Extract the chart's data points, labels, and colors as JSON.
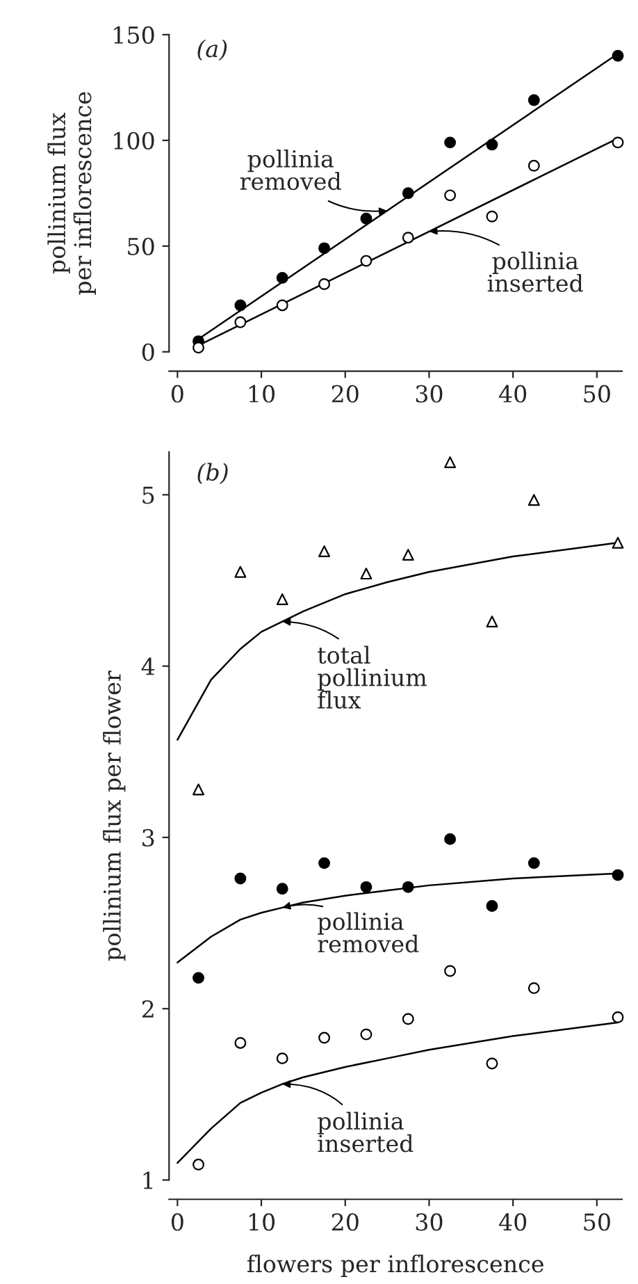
{
  "chart_data": [
    {
      "type": "scatter",
      "ylabel": "pollinium flux\nper inflorescence",
      "xlim": [
        -1,
        53
      ],
      "xticks": [
        0,
        10,
        20,
        30,
        40,
        50
      ],
      "ylim": [
        0,
        150
      ],
      "yticks": [
        0,
        50,
        100,
        150
      ],
      "grid": false,
      "legend": false,
      "annotations": [
        "(a)",
        {
          "text": "pollinia\nremoved",
          "x": 25,
          "y": 66.75
        },
        {
          "text": "pollinia\ninserted",
          "x": 30,
          "y": 56.9
        }
      ],
      "series": [
        {
          "type": "scatter",
          "marker": "circle",
          "color": "#000000",
          "x": [
            2.5,
            7.5,
            12.5,
            17.5,
            22.5,
            27.5,
            32.5,
            37.5,
            42.5,
            52.5
          ],
          "values": [
            5,
            22,
            35,
            49,
            63,
            75,
            99,
            98,
            119,
            140
          ]
        },
        {
          "type": "scatter",
          "marker": "circle",
          "color": "#ffffff",
          "x": [
            2.5,
            7.5,
            12.5,
            17.5,
            22.5,
            27.5,
            32.5,
            37.5,
            42.5,
            52.5
          ],
          "values": [
            2,
            14,
            22,
            32,
            43,
            54,
            74,
            64,
            88,
            99
          ]
        },
        {
          "type": "line",
          "color": "#000000",
          "line_style": "solid",
          "x": [
            2.5,
            52.5
          ],
          "values": [
            6,
            141
          ]
        },
        {
          "type": "line",
          "color": "#000000",
          "line_style": "solid",
          "x": [
            2.5,
            52.5
          ],
          "values": [
            3,
            101
          ]
        }
      ]
    },
    {
      "type": "scatter",
      "xlabel": "flowers per inflorescence",
      "ylabel": "pollinium flux per flower",
      "xlim": [
        -1,
        53
      ],
      "xticks": [
        0,
        10,
        20,
        30,
        40,
        50
      ],
      "ylim": [
        1,
        5.25
      ],
      "yticks": [
        1,
        2,
        3,
        4,
        5
      ],
      "grid": false,
      "legend": false,
      "annotations": [
        "(b)",
        {
          "text": "total\npollinium\nflux",
          "x": 12.5,
          "y": 4.26
        },
        {
          "text": "pollinia\nremoved",
          "x": 12.5,
          "y": 2.59
        },
        {
          "text": "pollinia\ninserted",
          "x": 12.5,
          "y": 1.56
        }
      ],
      "series": [
        {
          "type": "scatter",
          "marker": "triangle",
          "color": "#ffffff",
          "x": [
            2.5,
            7.5,
            12.5,
            17.5,
            22.5,
            27.5,
            32.5,
            37.5,
            42.5,
            52.5
          ],
          "values": [
            3.28,
            4.55,
            4.39,
            4.67,
            4.54,
            4.65,
            5.19,
            4.26,
            4.97,
            4.72
          ]
        },
        {
          "type": "scatter",
          "marker": "circle",
          "color": "#000000",
          "x": [
            2.5,
            7.5,
            12.5,
            17.5,
            22.5,
            27.5,
            32.5,
            37.5,
            42.5,
            52.5
          ],
          "values": [
            2.18,
            2.76,
            2.7,
            2.85,
            2.71,
            2.71,
            2.99,
            2.6,
            2.85,
            2.78
          ]
        },
        {
          "type": "scatter",
          "marker": "circle",
          "color": "#ffffff",
          "x": [
            2.5,
            7.5,
            12.5,
            17.5,
            22.5,
            27.5,
            32.5,
            37.5,
            42.5,
            52.5
          ],
          "values": [
            1.09,
            1.8,
            1.71,
            1.83,
            1.85,
            1.94,
            2.22,
            1.68,
            2.12,
            1.95
          ]
        },
        {
          "type": "line",
          "color": "#000000",
          "line_style": "solid",
          "x": [
            0,
            4,
            7.5,
            10,
            12.5,
            15,
            20,
            25,
            30,
            40,
            52.5
          ],
          "values": [
            3.57,
            3.92,
            4.1,
            4.2,
            4.26,
            4.32,
            4.42,
            4.49,
            4.55,
            4.64,
            4.72
          ]
        },
        {
          "type": "line",
          "color": "#000000",
          "line_style": "solid",
          "x": [
            0,
            4,
            7.5,
            10,
            12.5,
            15,
            20,
            25,
            30,
            40,
            52.5
          ],
          "values": [
            2.27,
            2.42,
            2.52,
            2.56,
            2.59,
            2.62,
            2.66,
            2.69,
            2.72,
            2.76,
            2.79
          ]
        },
        {
          "type": "line",
          "color": "#000000",
          "line_style": "solid",
          "x": [
            0,
            4,
            7.5,
            10,
            12.5,
            15,
            20,
            25,
            30,
            40,
            52.5
          ],
          "values": [
            1.1,
            1.3,
            1.45,
            1.51,
            1.56,
            1.6,
            1.66,
            1.71,
            1.76,
            1.84,
            1.92
          ]
        }
      ]
    }
  ]
}
